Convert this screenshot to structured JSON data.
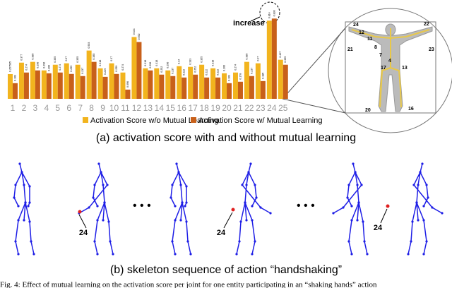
{
  "chart_data": {
    "type": "bar",
    "categories": [
      "1",
      "2",
      "3",
      "4",
      "5",
      "6",
      "7",
      "8",
      "9",
      "10",
      "11",
      "12",
      "13",
      "14",
      "15",
      "16",
      "17",
      "18",
      "19",
      "20",
      "21",
      "22",
      "23",
      "24",
      "25"
    ],
    "series": [
      {
        "name": "Activation Score w/o Mutual Learning",
        "color": "#f2b41e",
        "values": [
          0.257565,
          0.377,
          0.385,
          0.296,
          0.355,
          0.37,
          0.355,
          0.503,
          0.318,
          0.37,
          0.274,
          0.644,
          0.318,
          0.318,
          0.296,
          0.34,
          0.333,
          0.355,
          0.318,
          0.266,
          0.274,
          0.385,
          0.37,
          0.814,
          0.407
        ]
      },
      {
        "name": "Activation Score w/ Mutual Learning",
        "color": "#c8601a",
        "values": [
          0.163,
          0.274,
          0.296,
          0.266,
          0.274,
          0.259,
          0.237,
          0.385,
          0.229,
          0.259,
          0.096,
          0.592,
          0.296,
          0.252,
          0.237,
          0.222,
          0.252,
          0.222,
          0.222,
          0.163,
          0.178,
          0.237,
          0.185,
          0.836,
          0.355
        ]
      }
    ],
    "annotation": "increase"
  },
  "body_joints": [
    "24",
    "22",
    "12",
    "11",
    "8",
    "7",
    "4",
    "21",
    "23",
    "17",
    "13",
    "20",
    "16"
  ],
  "skeleton_joint": [
    "24",
    "24",
    "24"
  ],
  "captions": {
    "a": "(a) activation score with and without mutual learning",
    "b": "(b) skeleton sequence of action “handshaking”",
    "figure": "Fig. 4: Effect of mutual learning on the activation score per joint for one entity participating in an “shaking hands” action"
  }
}
